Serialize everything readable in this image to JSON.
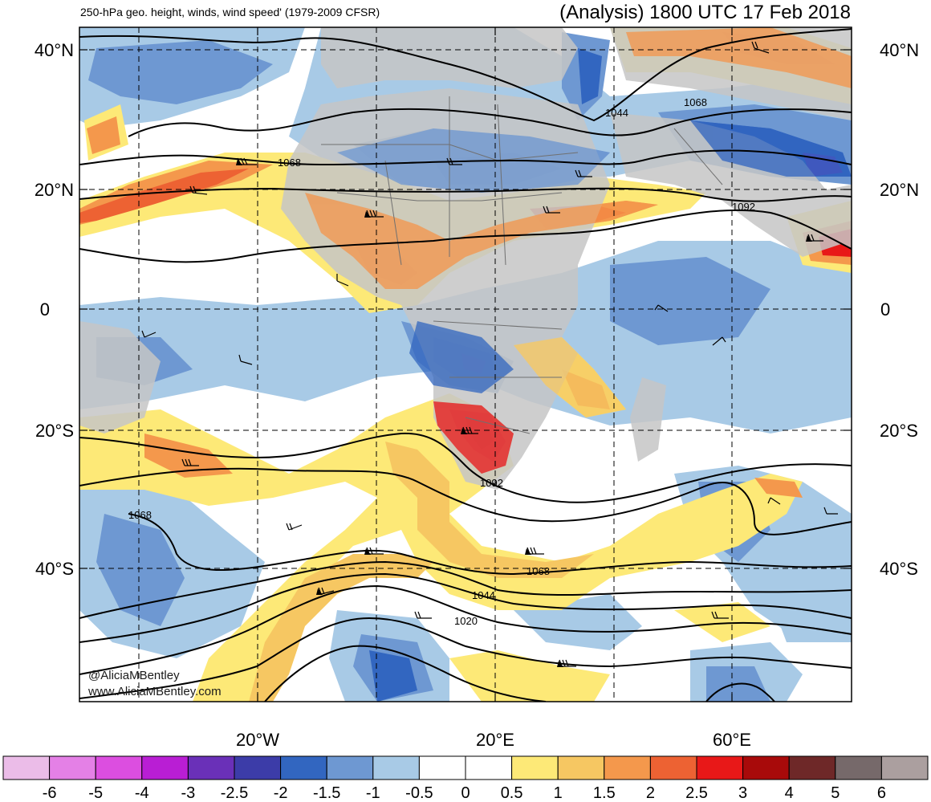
{
  "header": {
    "subtitle": "250-hPa geo. height, winds, wind speed' (1979-2009 CFSR)",
    "title": "(Analysis) 1800 UTC 17 Feb 2018"
  },
  "axes": {
    "lat_left": [
      "40°N",
      "20°N",
      "0",
      "20°S",
      "40°S"
    ],
    "lat_right": [
      "40°N",
      "20°N",
      "0",
      "20°S",
      "40°S"
    ],
    "lon_bottom": [
      "20°W",
      "20°E",
      "60°E"
    ]
  },
  "contours": {
    "labels": [
      "1044",
      "1068",
      "1068",
      "1092",
      "1092",
      "1068",
      "1068",
      "1044",
      "1020"
    ]
  },
  "credits": {
    "handle": "@AliciaMBentley",
    "url": "www.AliciaMBentley.com"
  },
  "colorbar": {
    "labels": [
      "-6",
      "-5",
      "-4",
      "-3",
      "-2.5",
      "-2",
      "-1.5",
      "-1",
      "-0.5",
      "0",
      "0.5",
      "1",
      "1.5",
      "2",
      "2.5",
      "3",
      "4",
      "5",
      "6"
    ],
    "colors": [
      "#ebbce8",
      "#e480e6",
      "#dc4ee0",
      "#b91ed4",
      "#6a30b8",
      "#3c3ca8",
      "#3266c0",
      "#6e98d2",
      "#a8cae6",
      "#ffffff",
      "#ffffff",
      "#fde977",
      "#f6c762",
      "#f4984c",
      "#ed6233",
      "#e81818",
      "#a80a0a",
      "#6e2828",
      "#76696a",
      "#ab9f9f"
    ]
  }
}
